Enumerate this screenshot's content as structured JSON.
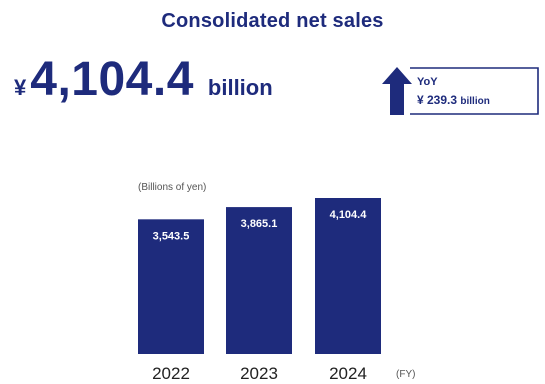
{
  "title": "Consolidated net sales",
  "headline": {
    "currency": "¥",
    "value": "4,104.4",
    "unit": "billion"
  },
  "yoy": {
    "label": "YoY",
    "value": "¥ 239.3",
    "unit": "billion"
  },
  "colors": {
    "accent": "#1e2b7c",
    "bar_label": "#ffffff",
    "muted": "#555555"
  },
  "chart_data": {
    "type": "bar",
    "ylabel": "(Billions of yen)",
    "categories": [
      "2022",
      "2023",
      "2024"
    ],
    "values": [
      3543.5,
      3865.1,
      4104.4
    ],
    "value_labels": [
      "3,543.5",
      "3,865.1",
      "4,104.4"
    ],
    "xunit": "(FY)"
  }
}
